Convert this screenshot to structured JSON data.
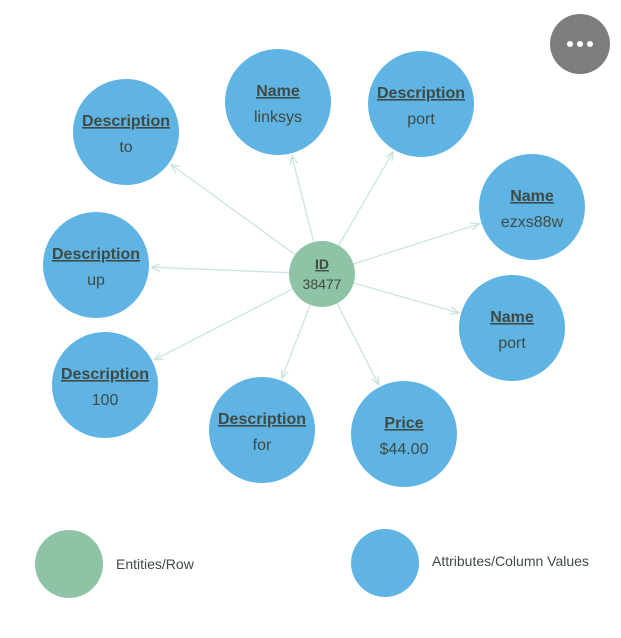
{
  "colors": {
    "entity": "#8fc3a5",
    "attribute": "#5fb4e4",
    "edge": "#cbe6d8",
    "menu": "#7d7d7d"
  },
  "center": {
    "key": "ID",
    "value": "38477"
  },
  "nodes": [
    {
      "key": "Description",
      "value": "to"
    },
    {
      "key": "Name",
      "value": "linksys"
    },
    {
      "key": "Description",
      "value": "port"
    },
    {
      "key": "Name",
      "value": "ezxs88w"
    },
    {
      "key": "Description",
      "value": "up"
    },
    {
      "key": "Name",
      "value": "port"
    },
    {
      "key": "Description",
      "value": "100"
    },
    {
      "key": "Description",
      "value": "for"
    },
    {
      "key": "Price",
      "value": "$44.00"
    }
  ],
  "legend": {
    "entities_label": "Entities/Row",
    "attributes_label": "Attributes/Column Values"
  },
  "menu": {
    "icon": "more-horizontal-icon"
  }
}
